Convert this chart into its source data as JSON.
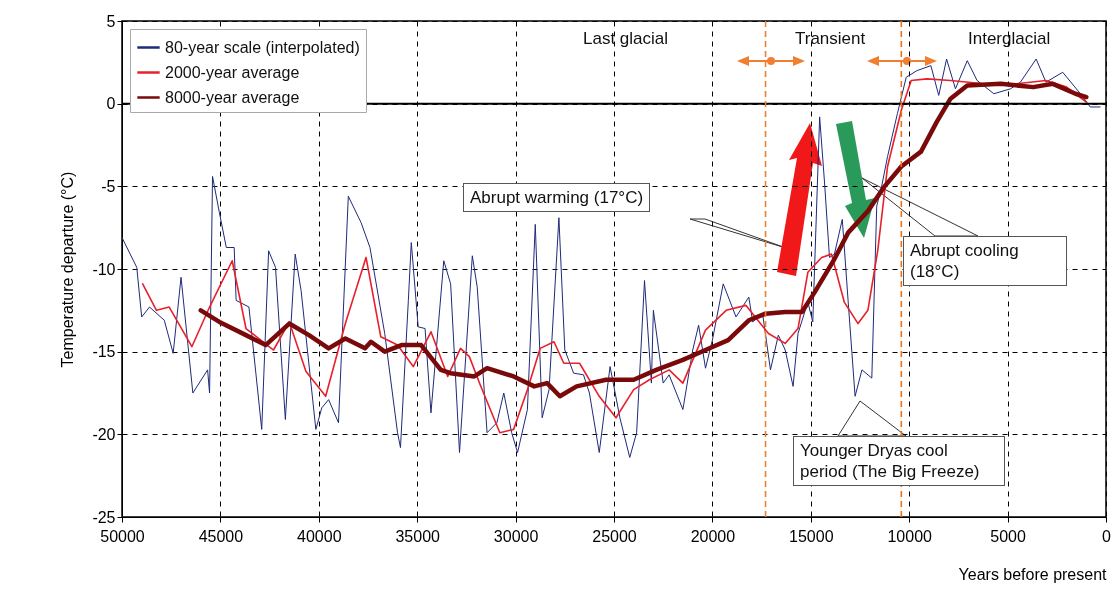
{
  "chart_data": {
    "type": "line",
    "xlabel": "Years before present",
    "ylabel": "Temperature departure (°C)",
    "xlim": [
      50000,
      0
    ],
    "ylim": [
      -25,
      5
    ],
    "xticks": [
      50000,
      45000,
      40000,
      35000,
      30000,
      25000,
      20000,
      15000,
      10000,
      5000,
      0
    ],
    "yticks": [
      -25,
      -20,
      -15,
      -10,
      -5,
      0,
      5
    ],
    "grid": true,
    "legend": "top left",
    "series": [
      {
        "name": "80-year scale (interpolated)",
        "color": "#1f2a7a",
        "x": [
          50000,
          49250,
          49000,
          48600,
          47850,
          47400,
          47000,
          46400,
          45650,
          45550,
          45400,
          45050,
          44700,
          44300,
          44200,
          43550,
          42900,
          42550,
          42200,
          41700,
          41200,
          40900,
          40150,
          39850,
          39500,
          39000,
          38500,
          37850,
          37400,
          36650,
          36000,
          35850,
          35450,
          35300,
          34950,
          34600,
          34300,
          33650,
          33300,
          32850,
          32200,
          31950,
          31450,
          30950,
          30600,
          30200,
          29900,
          29400,
          29000,
          28650,
          28300,
          27800,
          27500,
          27050,
          26550,
          26250,
          25750,
          25200,
          24700,
          24200,
          23850,
          23450,
          23100,
          23000,
          22500,
          22200,
          21500,
          21000,
          20700,
          20350,
          20000,
          19450,
          18800,
          18150,
          17950,
          17450,
          17050,
          16650,
          16300,
          15900,
          15650,
          15150,
          14900,
          14550,
          14300,
          14050,
          13800,
          13400,
          13100,
          12750,
          12400,
          11900,
          11650,
          11400,
          11100,
          10600,
          10150,
          9600,
          8900,
          8500,
          8100,
          7650,
          7050,
          6550,
          5700,
          4850,
          4350,
          3550,
          3050,
          2200,
          1300,
          800,
          300
        ],
        "values": [
          -8.1,
          -9.9,
          -12.9,
          -12.3,
          -13.1,
          -15.1,
          -10.5,
          -17.5,
          -16.1,
          -17.5,
          -4.4,
          -6.6,
          -8.7,
          -8.7,
          -11.9,
          -12.3,
          -19.7,
          -8.9,
          -9.9,
          -19.1,
          -9.1,
          -11.3,
          -19.7,
          -18.4,
          -17.9,
          -19.3,
          -5.6,
          -7.2,
          -8.7,
          -13.9,
          -19.9,
          -20.8,
          -11.9,
          -8.4,
          -13.5,
          -13.6,
          -18.7,
          -9.5,
          -10.9,
          -21.1,
          -9.2,
          -11.1,
          -19.9,
          -19.3,
          -17.5,
          -19.9,
          -21.1,
          -18.5,
          -7.3,
          -19.0,
          -17.3,
          -6.9,
          -14.9,
          -16.3,
          -16.4,
          -17.5,
          -21.1,
          -15.9,
          -19.0,
          -21.4,
          -19.9,
          -10.7,
          -16.9,
          -12.5,
          -16.9,
          -16.4,
          -18.5,
          -14.9,
          -13.4,
          -16.0,
          -14.3,
          -10.9,
          -12.9,
          -11.7,
          -13.2,
          -12.7,
          -16.1,
          -14.0,
          -14.9,
          -17.1,
          -13.9,
          -12.0,
          -13.2,
          -0.8,
          -4.8,
          -9.3,
          -9.1,
          -7.0,
          -12.0,
          -17.7,
          -16.1,
          -16.6,
          -6.2,
          -5.0,
          -3.2,
          -0.6,
          1.6,
          2.0,
          2.3,
          0.5,
          2.7,
          0.9,
          2.6,
          1.4,
          0.6,
          0.9,
          1.3,
          2.7,
          1.3,
          1.9,
          0.6,
          -0.2,
          -0.2
        ]
      },
      {
        "name": "2000-year average",
        "color": "#e8202a",
        "x": [
          48950,
          48250,
          47600,
          46450,
          45550,
          44400,
          43700,
          42300,
          41500,
          40650,
          39650,
          38650,
          37600,
          36850,
          36000,
          35200,
          34300,
          33450,
          32800,
          32350,
          31800,
          30800,
          30100,
          29400,
          28750,
          28050,
          27550,
          26750,
          25750,
          24900,
          24000,
          23200,
          22200,
          21500,
          20350,
          19300,
          18300,
          17150,
          16300,
          15650,
          15150,
          14450,
          13950,
          13300,
          12600,
          12100,
          11600,
          11100,
          10400,
          9900,
          9100,
          7900,
          6200,
          4550,
          3050,
          2000,
          1000
        ],
        "values": [
          -10.9,
          -12.5,
          -12.3,
          -14.7,
          -12.3,
          -9.5,
          -13.6,
          -14.9,
          -13.2,
          -16.2,
          -17.7,
          -13.3,
          -9.3,
          -14.1,
          -14.6,
          -15.9,
          -13.8,
          -16.5,
          -14.8,
          -15.3,
          -17.0,
          -19.9,
          -19.7,
          -17.3,
          -14.8,
          -14.4,
          -15.7,
          -15.7,
          -17.7,
          -19.0,
          -17.3,
          -16.7,
          -16.1,
          -16.9,
          -13.7,
          -12.5,
          -12.2,
          -13.9,
          -14.5,
          -13.6,
          -10.2,
          -9.3,
          -9.1,
          -12.0,
          -13.3,
          -12.5,
          -8.9,
          -3.8,
          -0.4,
          1.4,
          1.5,
          1.4,
          1.2,
          1.2,
          1.4,
          1.0,
          0.1
        ]
      },
      {
        "name": "8000-year average",
        "color": "#7a0a0a",
        "x": [
          46000,
          45050,
          43700,
          42700,
          41500,
          40500,
          39500,
          38650,
          37650,
          37350,
          36650,
          35800,
          34800,
          33800,
          33300,
          32100,
          31450,
          30100,
          29050,
          28400,
          27750,
          26900,
          25400,
          24000,
          22850,
          21500,
          20350,
          19200,
          18150,
          17300,
          16300,
          15450,
          14800,
          13800,
          13100,
          12100,
          11250,
          10400,
          9400,
          8600,
          7900,
          7050,
          5350,
          3700,
          2700,
          1550,
          1000
        ],
        "values": [
          -12.5,
          -13.2,
          -14.0,
          -14.6,
          -13.3,
          -14.0,
          -14.8,
          -14.2,
          -14.8,
          -14.4,
          -15.0,
          -14.6,
          -14.6,
          -16.1,
          -16.3,
          -16.5,
          -16.0,
          -16.5,
          -17.1,
          -16.9,
          -17.7,
          -17.1,
          -16.7,
          -16.7,
          -16.1,
          -15.5,
          -14.9,
          -14.3,
          -13.1,
          -12.7,
          -12.6,
          -12.6,
          -11.4,
          -9.4,
          -7.8,
          -6.5,
          -5.0,
          -3.8,
          -2.9,
          -1.1,
          0.3,
          1.1,
          1.2,
          1.0,
          1.2,
          0.6,
          0.4
        ]
      }
    ],
    "ref_lines": [
      {
        "axis": "y",
        "value": 0,
        "color": "#000000",
        "line_style": "solid"
      },
      {
        "axis": "x",
        "value": 17300,
        "color": "#f08030",
        "line_style": "dashed"
      },
      {
        "axis": "x",
        "value": 10400,
        "color": "#f07010",
        "line_style": "dashed"
      }
    ],
    "annotations": [
      "Last glacial",
      "Transient",
      "Interglacial",
      "Abrupt warming (17°C)",
      "Abrupt cooling (18°C)",
      "Younger Dryas cool period (The Big Freeze)"
    ]
  }
}
